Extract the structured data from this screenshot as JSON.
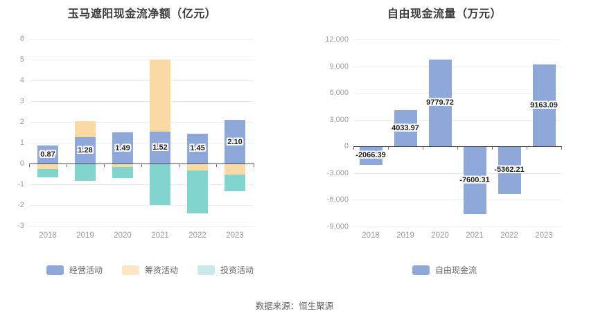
{
  "footer": {
    "source_text": "数据来源：恒生聚源"
  },
  "chart_data": [
    {
      "id": "net-cashflow",
      "type": "bar",
      "variant": "stacked",
      "title": "玉马遮阳现金流净额（亿元）",
      "xlabel": "",
      "ylabel": "",
      "categories": [
        "2018",
        "2019",
        "2020",
        "2021",
        "2022",
        "2023"
      ],
      "series": [
        {
          "id": "operating",
          "name": "经营活动",
          "color": "#8ea8da",
          "legend_color": "#8ea8da",
          "values": [
            0.87,
            1.28,
            1.49,
            1.52,
            1.45,
            2.1
          ]
        },
        {
          "id": "financing",
          "name": "筹资活动",
          "color": "#fbd9a2",
          "legend_color": "#fce6c6",
          "values": [
            -0.28,
            0.77,
            -0.17,
            3.48,
            -0.33,
            -0.53
          ]
        },
        {
          "id": "investing",
          "name": "投资活动",
          "color": "#82d5cf",
          "legend_color": "#c9eae8",
          "values": [
            -0.4,
            -0.83,
            -0.53,
            -2.0,
            -2.08,
            -0.82
          ]
        }
      ],
      "value_labels": {
        "series_index": 0,
        "texts": [
          "0.87",
          "1.28",
          "1.49",
          "1.52",
          "1.45",
          "2.10"
        ]
      },
      "y_axis": {
        "max": 6,
        "min": -3,
        "tick_labels": [
          "6",
          "5",
          "4",
          "3",
          "2",
          "1",
          "0",
          "-1",
          "-2",
          "-3"
        ]
      },
      "grid": true,
      "legend_position": "bottom",
      "legend": [
        "经营活动",
        "筹资活动",
        "投资活动"
      ]
    },
    {
      "id": "free-cashflow",
      "type": "bar",
      "variant": "single",
      "title": "自由现金流量（万元）",
      "xlabel": "",
      "ylabel": "",
      "categories": [
        "2018",
        "2019",
        "2020",
        "2021",
        "2022",
        "2023"
      ],
      "series": [
        {
          "id": "free-cash-flow",
          "name": "自由现金流",
          "color": "#8ea8da",
          "legend_color": "#8ea8da",
          "values": [
            -2066.39,
            4033.97,
            9779.72,
            -7600.31,
            -5362.21,
            9163.09
          ]
        }
      ],
      "value_labels": {
        "series_index": 0,
        "texts": [
          "-2066.39",
          "4033.97",
          "9779.72",
          "-7600.31",
          "-5362.21",
          "9163.09"
        ]
      },
      "y_axis": {
        "max": 12000,
        "min": -9000,
        "tick_labels": [
          "12,000",
          "9,000",
          "6,000",
          "3,000",
          "0",
          "-3,000",
          "-6,000",
          "-9,000"
        ]
      },
      "grid": true,
      "legend_position": "bottom",
      "legend": [
        "自由现金流"
      ]
    }
  ]
}
